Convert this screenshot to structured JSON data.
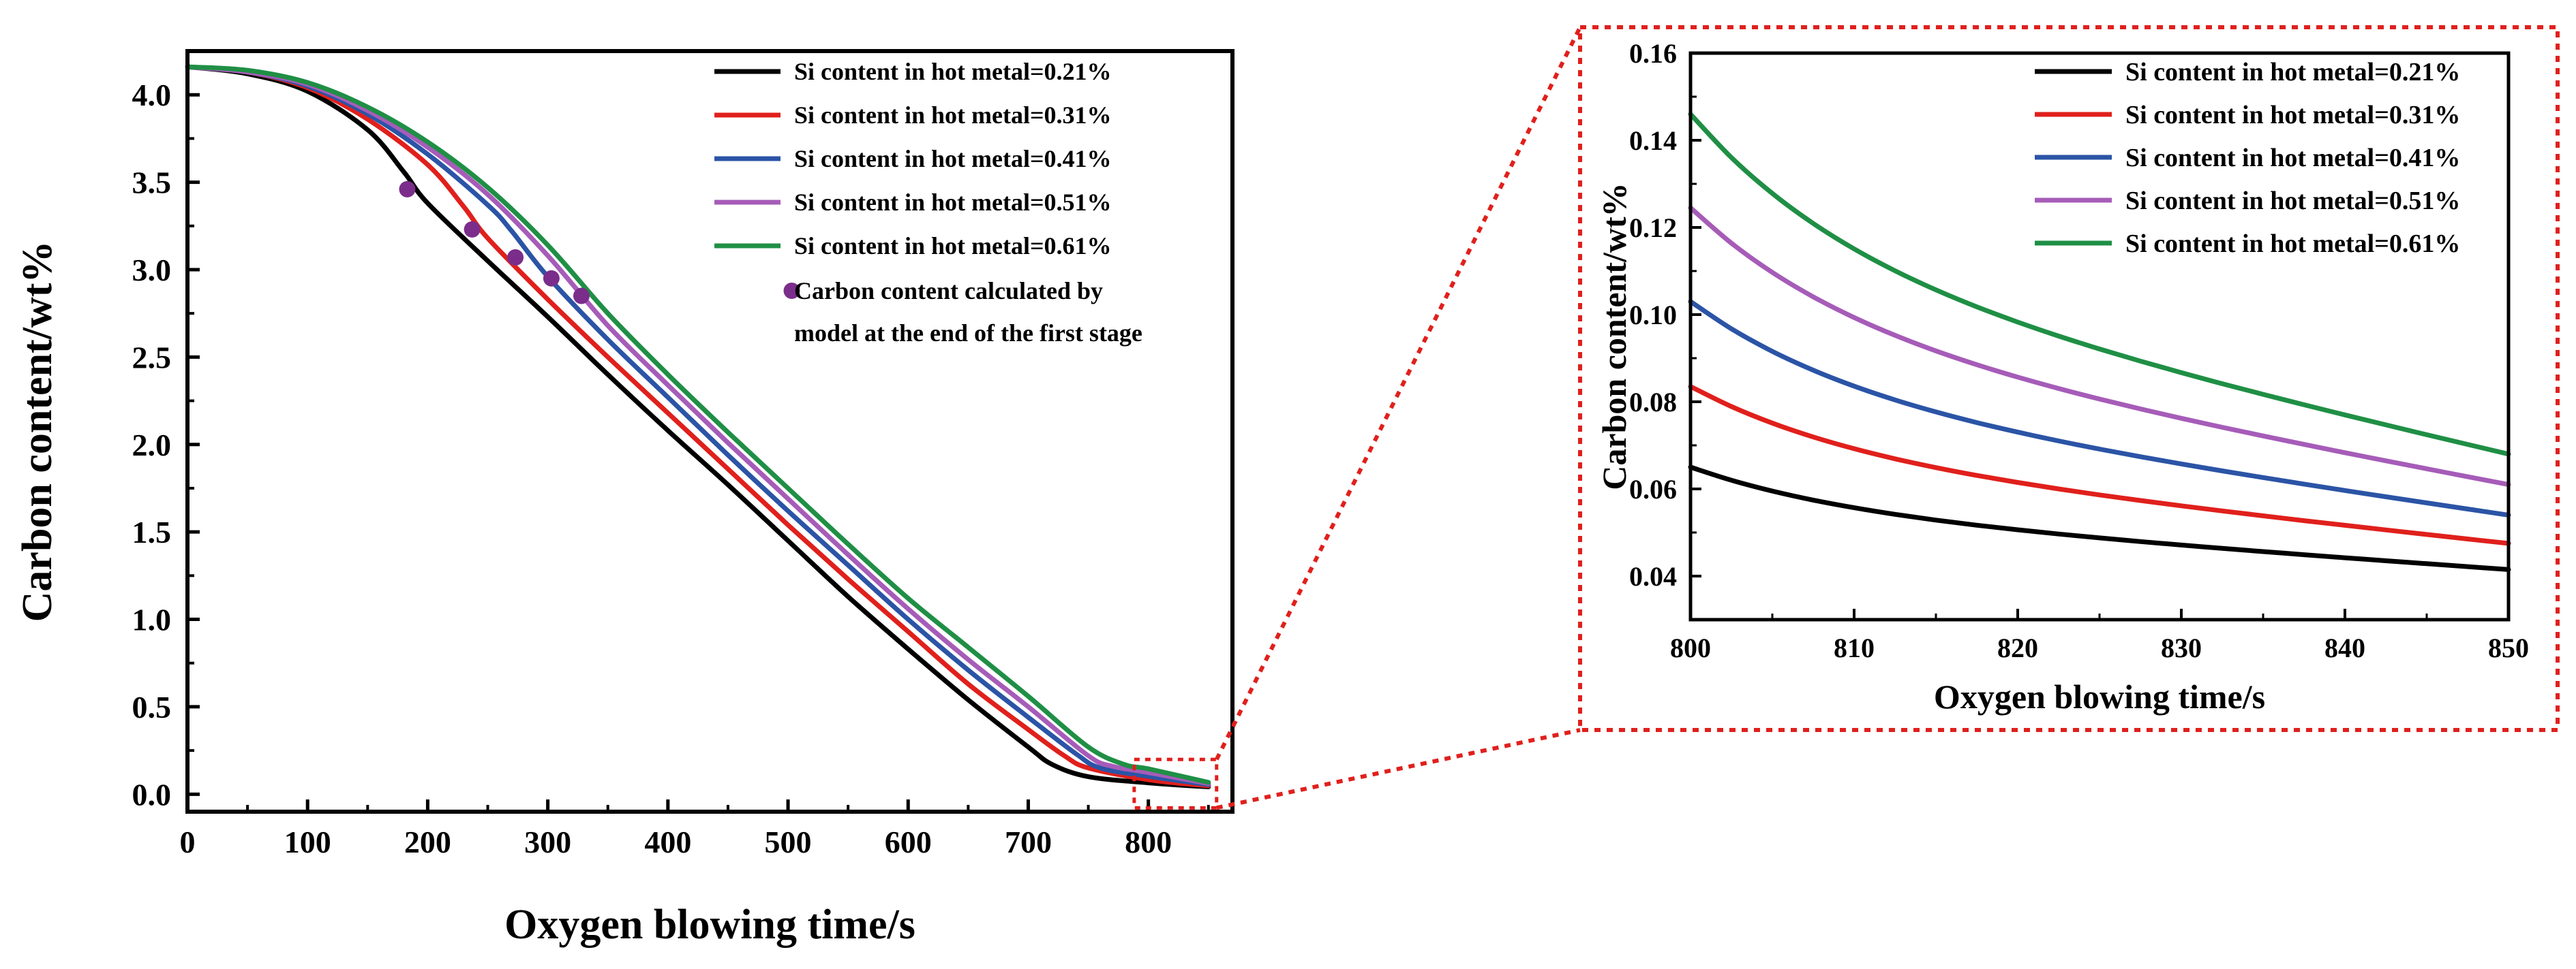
{
  "chart_data": [
    {
      "type": "line",
      "title": "",
      "xlabel": "Oxygen blowing time/s",
      "ylabel": "Carbon content/wt%",
      "xlim": [
        0,
        870
      ],
      "ylim": [
        -0.1,
        4.25
      ],
      "xticks": [
        "0",
        "100",
        "200",
        "300",
        "400",
        "500",
        "600",
        "700",
        "800"
      ],
      "yticks": [
        "0.0",
        "0.5",
        "1.0",
        "1.5",
        "2.0",
        "2.5",
        "3.0",
        "3.5",
        "4.0"
      ],
      "legend_position": "top-right",
      "series": [
        {
          "name": "Si content in hot metal=0.21%",
          "color": "#000000",
          "points": [
            [
              0,
              4.16
            ],
            [
              50,
              4.12
            ],
            [
              100,
              4.02
            ],
            [
              150,
              3.8
            ],
            [
              180,
              3.56
            ],
            [
              200,
              3.38
            ],
            [
              250,
              3.05
            ],
            [
              300,
              2.73
            ],
            [
              350,
              2.4
            ],
            [
              400,
              2.08
            ],
            [
              450,
              1.77
            ],
            [
              500,
              1.45
            ],
            [
              550,
              1.13
            ],
            [
              600,
              0.83
            ],
            [
              650,
              0.54
            ],
            [
              700,
              0.27
            ],
            [
              720,
              0.17
            ],
            [
              750,
              0.1
            ],
            [
              800,
              0.065
            ],
            [
              850,
              0.042
            ]
          ]
        },
        {
          "name": "Si content in hot metal=0.31%",
          "color": "#e0201c",
          "points": [
            [
              0,
              4.16
            ],
            [
              50,
              4.13
            ],
            [
              100,
              4.04
            ],
            [
              150,
              3.86
            ],
            [
              200,
              3.6
            ],
            [
              230,
              3.36
            ],
            [
              250,
              3.18
            ],
            [
              300,
              2.83
            ],
            [
              350,
              2.5
            ],
            [
              400,
              2.18
            ],
            [
              450,
              1.86
            ],
            [
              500,
              1.54
            ],
            [
              550,
              1.23
            ],
            [
              600,
              0.93
            ],
            [
              650,
              0.63
            ],
            [
              700,
              0.37
            ],
            [
              730,
              0.22
            ],
            [
              750,
              0.15
            ],
            [
              800,
              0.083
            ],
            [
              850,
              0.048
            ]
          ]
        },
        {
          "name": "Si content in hot metal=0.41%",
          "color": "#2b54a6",
          "points": [
            [
              0,
              4.16
            ],
            [
              50,
              4.13
            ],
            [
              100,
              4.05
            ],
            [
              150,
              3.89
            ],
            [
              200,
              3.66
            ],
            [
              250,
              3.37
            ],
            [
              270,
              3.22
            ],
            [
              300,
              2.96
            ],
            [
              350,
              2.6
            ],
            [
              400,
              2.27
            ],
            [
              450,
              1.94
            ],
            [
              500,
              1.62
            ],
            [
              550,
              1.31
            ],
            [
              600,
              1.0
            ],
            [
              650,
              0.71
            ],
            [
              700,
              0.44
            ],
            [
              740,
              0.23
            ],
            [
              760,
              0.15
            ],
            [
              800,
              0.102
            ],
            [
              850,
              0.055
            ]
          ]
        },
        {
          "name": "Si content in hot metal=0.51%",
          "color": "#a65cb8",
          "points": [
            [
              0,
              4.16
            ],
            [
              50,
              4.13
            ],
            [
              100,
              4.06
            ],
            [
              150,
              3.91
            ],
            [
              200,
              3.7
            ],
            [
              250,
              3.43
            ],
            [
              300,
              3.08
            ],
            [
              350,
              2.68
            ],
            [
              400,
              2.34
            ],
            [
              450,
              2.01
            ],
            [
              500,
              1.69
            ],
            [
              550,
              1.37
            ],
            [
              600,
              1.06
            ],
            [
              650,
              0.77
            ],
            [
              700,
              0.5
            ],
            [
              750,
              0.22
            ],
            [
              770,
              0.16
            ],
            [
              800,
              0.124
            ],
            [
              850,
              0.061
            ]
          ]
        },
        {
          "name": "Si content in hot metal=0.61%",
          "color": "#1f8f45",
          "points": [
            [
              0,
              4.16
            ],
            [
              50,
              4.14
            ],
            [
              100,
              4.07
            ],
            [
              150,
              3.93
            ],
            [
              200,
              3.73
            ],
            [
              250,
              3.47
            ],
            [
              300,
              3.14
            ],
            [
              350,
              2.75
            ],
            [
              400,
              2.4
            ],
            [
              450,
              2.07
            ],
            [
              500,
              1.75
            ],
            [
              550,
              1.43
            ],
            [
              600,
              1.12
            ],
            [
              650,
              0.84
            ],
            [
              700,
              0.56
            ],
            [
              750,
              0.27
            ],
            [
              780,
              0.17
            ],
            [
              800,
              0.145
            ],
            [
              850,
              0.068
            ]
          ]
        }
      ],
      "markers": {
        "name": "Carbon content calculated by model at the end of the first stage",
        "legend_lines": [
          "Carbon content calculated by",
          "model at the end of the first stage"
        ],
        "color": "#7b2d8b",
        "points": [
          [
            183,
            3.46
          ],
          [
            237,
            3.23
          ],
          [
            273,
            3.07
          ],
          [
            303,
            2.95
          ],
          [
            328,
            2.85
          ]
        ]
      },
      "zoom_region": {
        "x": [
          795,
          850
        ],
        "y": [
          0.0,
          0.16
        ],
        "color": "#e0201c"
      }
    },
    {
      "type": "line",
      "title": "",
      "xlabel": "Oxygen blowing time/s",
      "ylabel": "Carbon content/wt%",
      "xlim": [
        800,
        850
      ],
      "ylim": [
        0.03,
        0.16
      ],
      "xticks": [
        "800",
        "810",
        "820",
        "830",
        "840",
        "850"
      ],
      "yticks": [
        "0.04",
        "0.06",
        "0.08",
        "0.10",
        "0.12",
        "0.14",
        "0.16"
      ],
      "legend_position": "top-right",
      "series": [
        {
          "name": "Si content in hot metal=0.21%",
          "color": "#000000",
          "start": 0.065,
          "end": 0.0415
        },
        {
          "name": "Si content in hot metal=0.31%",
          "color": "#e0201c",
          "start": 0.0835,
          "end": 0.0475
        },
        {
          "name": "Si content in hot metal=0.41%",
          "color": "#2b54a6",
          "start": 0.103,
          "end": 0.054
        },
        {
          "name": "Si content in hot metal=0.51%",
          "color": "#a65cb8",
          "start": 0.1245,
          "end": 0.061
        },
        {
          "name": "Si content in hot metal=0.61%",
          "color": "#1f8f45",
          "start": 0.146,
          "end": 0.068
        }
      ]
    }
  ]
}
